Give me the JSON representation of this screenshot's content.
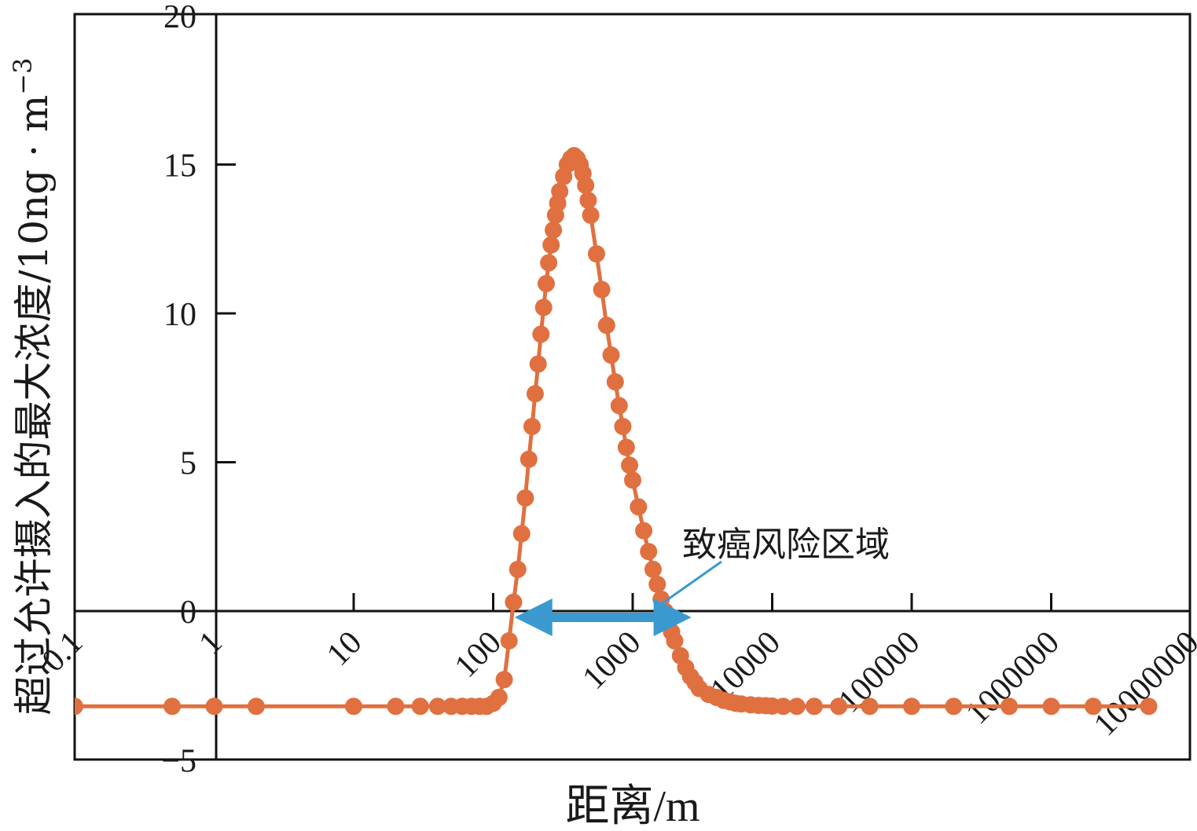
{
  "chart_data": {
    "type": "scatter",
    "xlabel": "距离/m",
    "ylabel_main": "超过允许摄入的最大浓度/10ng · m",
    "ylabel_sup": "−3",
    "x_scale": "log",
    "xlim": [
      0.1,
      10000000
    ],
    "ylim": [
      -5,
      20
    ],
    "x_ticks": [
      0.1,
      1,
      10,
      100,
      1000,
      10000,
      100000,
      1000000,
      10000000
    ],
    "x_tick_labels": [
      "0.1",
      "1",
      "10",
      "100",
      "1000",
      "10000",
      "100000",
      "1000000",
      "10000000"
    ],
    "y_ticks": [
      -5,
      0,
      5,
      10,
      15,
      20
    ],
    "y_tick_labels": [
      "−5",
      "0",
      "5",
      "10",
      "15",
      "20"
    ],
    "grid": false,
    "annotation": {
      "text": "致癌风险区域",
      "x_range": [
        150,
        2500
      ],
      "y": 0
    },
    "colors": {
      "series": "#e07040",
      "arrow": "#3a9ad0",
      "axis": "#111111"
    },
    "series": [
      {
        "x": [
          0.1,
          0.5,
          1,
          2,
          10,
          20,
          30,
          40,
          50,
          60,
          70,
          80,
          90,
          100,
          110,
          120,
          130,
          140,
          150,
          160,
          170,
          180,
          190,
          200,
          210,
          220,
          230,
          240,
          250,
          260,
          270,
          280,
          290,
          300,
          320,
          340,
          360,
          380,
          400,
          420,
          440,
          460,
          480,
          500,
          550,
          600,
          650,
          700,
          750,
          800,
          850,
          900,
          950,
          1000,
          1100,
          1200,
          1300,
          1400,
          1500,
          1600,
          1700,
          1800,
          1900,
          2000,
          2200,
          2400,
          2600,
          2800,
          3000,
          3500,
          4000,
          4500,
          5000,
          5500,
          6000,
          7000,
          8000,
          9000,
          10000,
          12000,
          15000,
          20000,
          30000,
          50000,
          100000,
          200000,
          500000,
          1000000,
          2000000,
          5000000
        ],
        "y": [
          -3.2,
          -3.2,
          -3.2,
          -3.2,
          -3.2,
          -3.2,
          -3.2,
          -3.2,
          -3.2,
          -3.2,
          -3.2,
          -3.2,
          -3.2,
          -3.1,
          -2.9,
          -2.3,
          -1.0,
          0.3,
          1.4,
          2.6,
          3.8,
          5.1,
          6.2,
          7.3,
          8.3,
          9.3,
          10.2,
          11.0,
          11.7,
          12.3,
          12.8,
          13.3,
          13.7,
          14.1,
          14.6,
          15.0,
          15.2,
          15.3,
          15.2,
          15.0,
          14.7,
          14.3,
          13.8,
          13.3,
          12.0,
          10.8,
          9.6,
          8.6,
          7.7,
          6.9,
          6.2,
          5.5,
          4.9,
          4.4,
          3.5,
          2.7,
          2.0,
          1.4,
          0.9,
          0.4,
          0.0,
          -0.4,
          -0.7,
          -1.0,
          -1.5,
          -1.9,
          -2.2,
          -2.4,
          -2.6,
          -2.8,
          -2.9,
          -3.0,
          -3.05,
          -3.1,
          -3.12,
          -3.15,
          -3.17,
          -3.18,
          -3.19,
          -3.2,
          -3.2,
          -3.2,
          -3.2,
          -3.2,
          -3.2,
          -3.2,
          -3.2,
          -3.2,
          -3.2,
          -3.2
        ]
      }
    ]
  }
}
